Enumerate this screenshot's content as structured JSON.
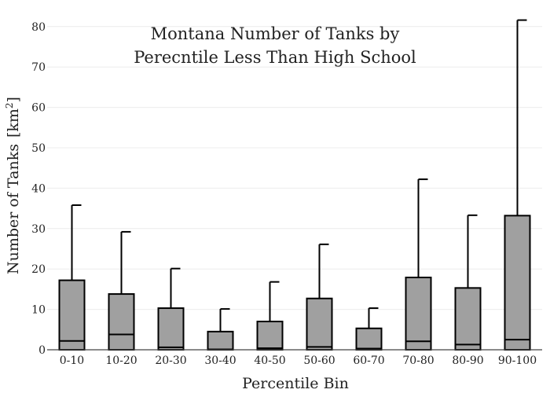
{
  "chart_data": {
    "type": "box",
    "title_lines": [
      "Montana Number of Tanks by",
      "Perecntile Less Than High School"
    ],
    "xlabel": "Percentile Bin",
    "ylabel_main": "Number of Tanks",
    "ylabel_unit_open": "[km",
    "ylabel_unit_sup": "2",
    "ylabel_unit_close": "]",
    "ylim": [
      0,
      82
    ],
    "yticks": [
      0,
      10,
      20,
      30,
      40,
      50,
      60,
      70,
      80
    ],
    "ytick_labels": [
      "0",
      "10",
      "20",
      "30",
      "40",
      "50",
      "60",
      "70",
      "80"
    ],
    "grid": true,
    "categories": [
      "0-10",
      "10-20",
      "20-30",
      "30-40",
      "40-50",
      "50-60",
      "60-70",
      "70-80",
      "80-90",
      "90-100"
    ],
    "boxes": [
      {
        "q1": 0,
        "median": 2.2,
        "q3": 17.2,
        "whisker_high": 35.8
      },
      {
        "q1": 0,
        "median": 3.8,
        "q3": 13.8,
        "whisker_high": 29.2
      },
      {
        "q1": 0,
        "median": 0.6,
        "q3": 10.3,
        "whisker_high": 20.1
      },
      {
        "q1": 0,
        "median": 0.1,
        "q3": 4.5,
        "whisker_high": 10.1
      },
      {
        "q1": 0,
        "median": 0.4,
        "q3": 7.0,
        "whisker_high": 16.8
      },
      {
        "q1": 0,
        "median": 0.7,
        "q3": 12.7,
        "whisker_high": 26.1
      },
      {
        "q1": 0,
        "median": 0.3,
        "q3": 5.3,
        "whisker_high": 10.3
      },
      {
        "q1": 0,
        "median": 2.1,
        "q3": 17.9,
        "whisker_high": 42.2
      },
      {
        "q1": 0,
        "median": 1.3,
        "q3": 15.3,
        "whisker_high": 33.3
      },
      {
        "q1": 0,
        "median": 2.5,
        "q3": 33.2,
        "whisker_high": 81.6
      }
    ]
  }
}
